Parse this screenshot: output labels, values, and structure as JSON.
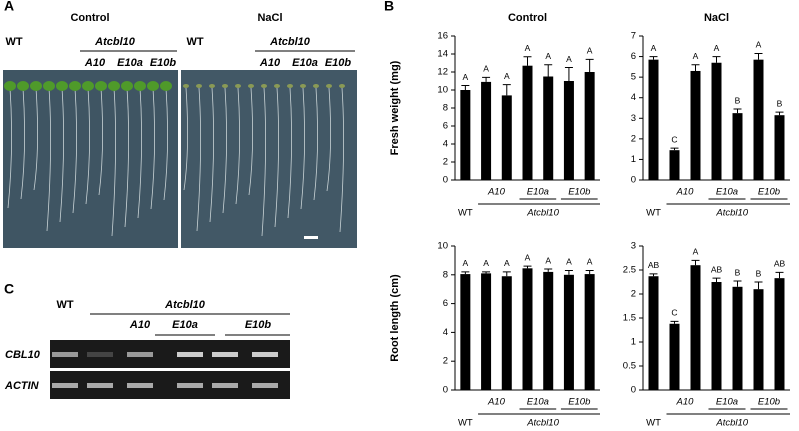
{
  "panels": {
    "a": "A",
    "b": "B",
    "c": "C"
  },
  "photo": {
    "control": "Control",
    "nacl": "NaCl",
    "wt": "WT",
    "line": "Atcbl10",
    "lines": [
      "A10",
      "E10a",
      "E10b"
    ]
  },
  "gel": {
    "wt": "WT",
    "line": "Atcbl10",
    "lines": [
      "A10",
      "E10a",
      "E10b"
    ],
    "genes": [
      "CBL10",
      "ACTIN"
    ]
  },
  "chart_data": [
    {
      "type": "bar",
      "title": "Control",
      "y_label": "Fresh weight (mg)",
      "genotype_label": "Atcbl10",
      "categories": [
        "WT",
        "A10",
        null,
        "E10a",
        null,
        "E10b",
        null
      ],
      "values": [
        10,
        10.9,
        9.4,
        12.7,
        11.5,
        11.0,
        12.0
      ],
      "errors": [
        0.5,
        0.5,
        1.2,
        1.0,
        1.3,
        1.5,
        1.4
      ],
      "letters": [
        "A",
        "A",
        "A",
        "A",
        "A",
        "A",
        "A"
      ],
      "color": "#000000",
      "ylim": [
        0,
        16
      ],
      "yticks": [
        0,
        2,
        4,
        6,
        8,
        10,
        12,
        14,
        16
      ]
    },
    {
      "type": "bar",
      "title": "NaCl",
      "genotype_label": "Atcbl10",
      "categories": [
        "WT",
        "A10",
        null,
        "E10a",
        null,
        "E10b",
        null
      ],
      "values": [
        5.85,
        1.45,
        5.3,
        5.7,
        3.25,
        5.85,
        3.15
      ],
      "errors": [
        0.15,
        0.1,
        0.3,
        0.3,
        0.2,
        0.3,
        0.15
      ],
      "letters": [
        "A",
        "C",
        "A",
        "A",
        "B",
        "A",
        "B"
      ],
      "color": "#000000",
      "ylim": [
        0,
        7
      ],
      "yticks": [
        0,
        1,
        2,
        3,
        4,
        5,
        6,
        7
      ]
    },
    {
      "type": "bar",
      "y_label": "Root length (cm)",
      "genotype_label": "Atcbl10",
      "categories": [
        "WT",
        "A10",
        null,
        "E10a",
        null,
        "E10b",
        null
      ],
      "values": [
        8.05,
        8.1,
        7.9,
        8.45,
        8.2,
        8.0,
        8.05
      ],
      "errors": [
        0.15,
        0.1,
        0.3,
        0.15,
        0.2,
        0.3,
        0.25
      ],
      "letters": [
        "A",
        "A",
        "A",
        "A",
        "A",
        "A",
        "A"
      ],
      "color": "#000000",
      "ylim": [
        0,
        10
      ],
      "yticks": [
        0,
        2,
        4,
        6,
        8,
        10
      ]
    },
    {
      "type": "bar",
      "genotype_label": "Atcbl10",
      "categories": [
        "WT",
        "A10",
        null,
        "E10a",
        null,
        "E10b",
        null
      ],
      "values": [
        2.37,
        1.38,
        2.6,
        2.25,
        2.15,
        2.1,
        2.33
      ],
      "errors": [
        0.05,
        0.05,
        0.1,
        0.08,
        0.12,
        0.15,
        0.12
      ],
      "letters": [
        "AB",
        "C",
        "A",
        "AB",
        "B",
        "B",
        "AB"
      ],
      "color": "#000000",
      "ylim": [
        0,
        3
      ],
      "yticks": [
        0,
        0.5,
        1,
        1.5,
        2,
        2.5,
        3
      ]
    }
  ]
}
